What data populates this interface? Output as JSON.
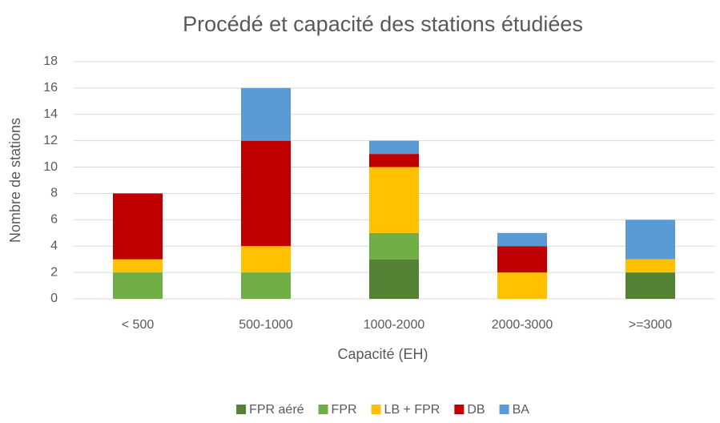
{
  "chart_data": {
    "type": "bar",
    "stacked": true,
    "title": "Procédé et capacité des stations étudiées",
    "xlabel": "Capacité (EH)",
    "ylabel": "Nombre de stations",
    "categories": [
      "< 500",
      "500-1000",
      "1000-2000",
      "2000-3000",
      ">=3000"
    ],
    "series": [
      {
        "name": "FPR aéré",
        "color": "#548235",
        "values": [
          0,
          0,
          3,
          0,
          2
        ]
      },
      {
        "name": "FPR",
        "color": "#70ad47",
        "values": [
          2,
          2,
          2,
          0,
          0
        ]
      },
      {
        "name": "LB + FPR",
        "color": "#ffc000",
        "values": [
          1,
          2,
          5,
          2,
          1
        ]
      },
      {
        "name": "DB",
        "color": "#c00000",
        "values": [
          5,
          8,
          1,
          2,
          0
        ]
      },
      {
        "name": "BA",
        "color": "#5b9bd5",
        "values": [
          0,
          4,
          1,
          1,
          3
        ]
      }
    ],
    "ylim": [
      0,
      18
    ],
    "yticks": [
      0,
      2,
      4,
      6,
      8,
      10,
      12,
      14,
      16,
      18
    ],
    "grid": true,
    "legend": "bottom"
  }
}
